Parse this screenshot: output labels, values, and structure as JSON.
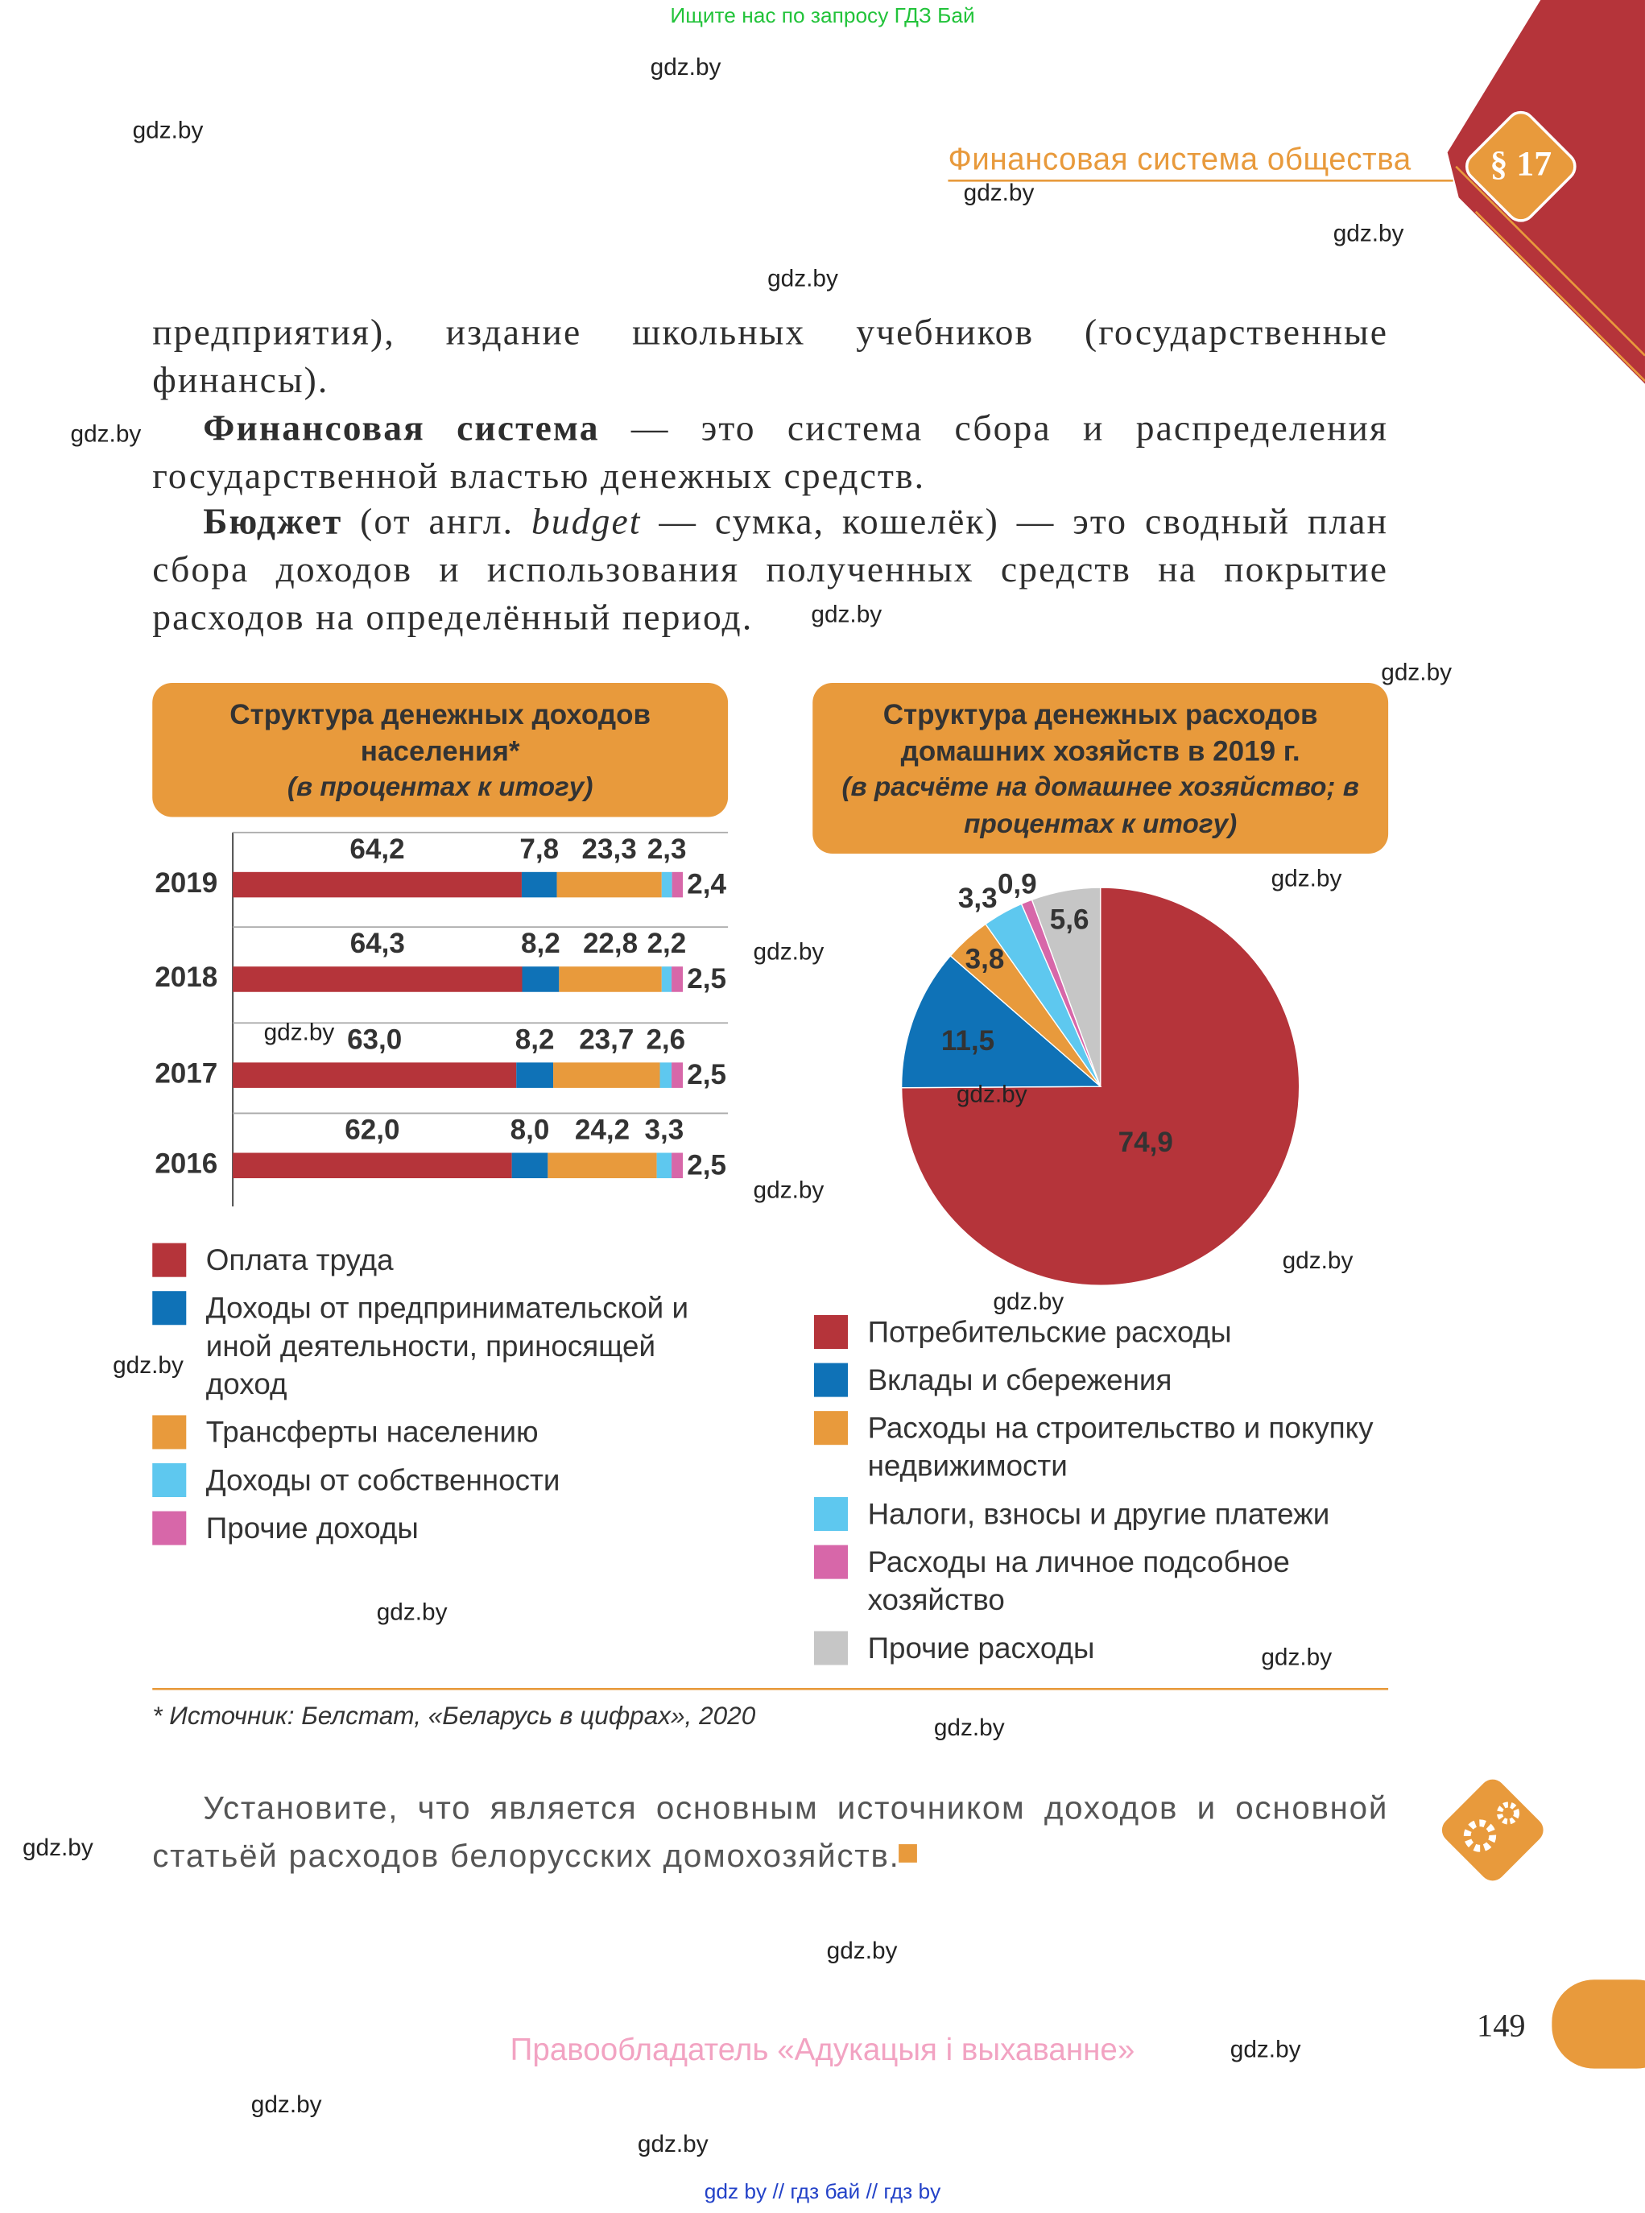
{
  "banner": "Ищите нас по запросу ГДЗ Бай",
  "header": {
    "title": "Финансовая система общества",
    "section": "§ 17"
  },
  "paragraphs": [
    {
      "indent": false,
      "runs": [
        {
          "text": "предприятия), издание школьных учебников (государственные финансы)."
        }
      ]
    },
    {
      "indent": true,
      "runs": [
        {
          "text": "Финансовая система",
          "style": "bold"
        },
        {
          "text": " — это система сбора и распределения государственной властью денежных средств."
        }
      ]
    },
    {
      "indent": true,
      "runs": [
        {
          "text": "Бюджет",
          "style": "bold"
        },
        {
          "text": " (от англ. "
        },
        {
          "text": "budget",
          "style": "italic"
        },
        {
          "text": " — сумка, кошелёк) — это сводный план сбора доходов и использования полученных средств на покрытие расходов на определённый период."
        }
      ]
    }
  ],
  "chart_data": [
    {
      "type": "bar",
      "orientation": "horizontal",
      "stacked": true,
      "title": "Структура денежных доходов населения*",
      "subtitle": "(в процентах к итогу)",
      "categories": [
        "2019",
        "2018",
        "2017",
        "2016"
      ],
      "xlim": [
        0,
        100
      ],
      "series": [
        {
          "name": "Оплата труда",
          "color": "#b5343a",
          "values": [
            64.2,
            64.3,
            63.0,
            62.0
          ],
          "value_labels": [
            "64,2",
            "64,3",
            "63,0",
            "62,0"
          ]
        },
        {
          "name": "Доходы от предпринимательской и иной деятельности, приносящей доход",
          "color": "#0f72b7",
          "values": [
            7.8,
            8.2,
            8.2,
            8.0
          ],
          "value_labels": [
            "7,8",
            "8,2",
            "8,2",
            "8,0"
          ]
        },
        {
          "name": "Трансферты населению",
          "color": "#e89a3c",
          "values": [
            23.3,
            22.8,
            23.7,
            24.2
          ],
          "value_labels": [
            "23,3",
            "22,8",
            "23,7",
            "24,2"
          ]
        },
        {
          "name": "Доходы от собственности",
          "color": "#5ec8ef",
          "values": [
            2.3,
            2.2,
            2.6,
            3.3
          ],
          "value_labels": [
            "2,3",
            "2,2",
            "2,6",
            "3,3"
          ]
        },
        {
          "name": "Прочие доходы",
          "color": "#d767a9",
          "values": [
            2.4,
            2.5,
            2.5,
            2.5
          ],
          "value_labels": [
            "2,4",
            "2,5",
            "2,5",
            "2,5"
          ]
        }
      ]
    },
    {
      "type": "pie",
      "title": "Структура денежных расходов домашних хозяйств в 2019 г.",
      "subtitle": "(в расчёте на домашнее хозяйство; в процентах к итогу)",
      "categories": [
        "Потребительские расходы",
        "Вклады и сбережения",
        "Расходы на строительство и покупку недвижимости",
        "Налоги, взносы и другие платежи",
        "Расходы на личное подсобное хозяйство",
        "Прочие расходы"
      ],
      "values": [
        74.9,
        11.5,
        3.8,
        3.3,
        0.9,
        5.6
      ],
      "value_labels": [
        "74,9",
        "11,5",
        "3,8",
        "3,3",
        "0,9",
        "5,6"
      ],
      "colors": [
        "#b5343a",
        "#0f72b7",
        "#e89a3c",
        "#5ec8ef",
        "#d767a9",
        "#c6c6c6"
      ]
    }
  ],
  "footnote": "* Источник: Белстат, «Беларусь в цифрах», 2020",
  "task": "Установите, что является основным источником доходов и основной статьёй расходов белорусских домохозяйств.",
  "page_number": 149,
  "copyright": "Правообладатель «Адукацыя і выхаванне»",
  "bottom_links": "gdz by // гдз бай // гдз by",
  "watermarks": [
    "gdz.by",
    "gdz.by",
    "gdz.by",
    "gdz.by",
    "gdz.by",
    "gdz.by",
    "gdz.by",
    "gdz.by",
    "gdz.by",
    "gdz.by",
    "gdz.by",
    "gdz.by",
    "gdz.by",
    "gdz.by",
    "gdz.by",
    "gdz.by",
    "gdz.by",
    "gdz.by",
    "gdz.by",
    "gdz.by",
    "gdz.by",
    "gdz.by",
    "gdz.by",
    "gdz.by"
  ]
}
